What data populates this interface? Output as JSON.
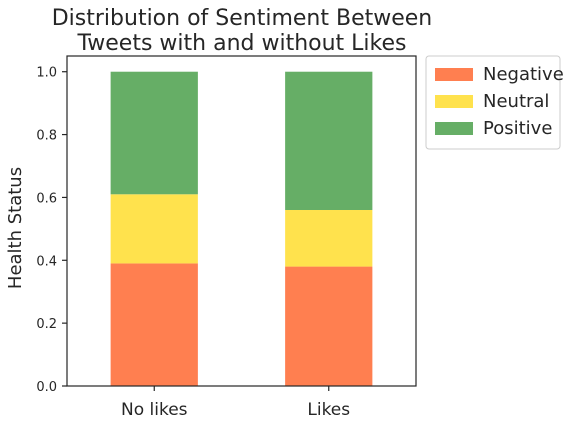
{
  "chart_data": {
    "type": "bar",
    "stacked": true,
    "title_lines": [
      "Distribution of Sentiment Between",
      "Tweets with and without Likes"
    ],
    "xlabel": "",
    "ylabel": "Health Status",
    "categories": [
      "No likes",
      "Likes"
    ],
    "ylim": [
      0,
      1.05
    ],
    "yticks": [
      "0.0",
      "0.2",
      "0.4",
      "0.6",
      "0.8",
      "1.0"
    ],
    "grid": false,
    "legend_position": "outside top-right",
    "series": [
      {
        "name": "Negative",
        "color": "#ff7f50",
        "values": [
          0.39,
          0.38
        ]
      },
      {
        "name": "Neutral",
        "color": "#ffe24d",
        "values": [
          0.22,
          0.18
        ]
      },
      {
        "name": "Positive",
        "color": "#66ae66",
        "values": [
          0.39,
          0.44
        ]
      }
    ]
  }
}
